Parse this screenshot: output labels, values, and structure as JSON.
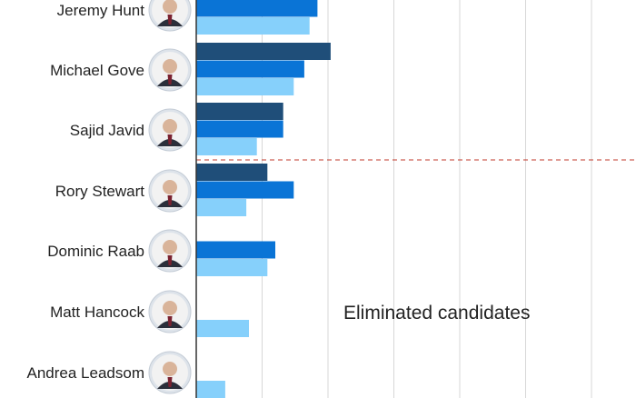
{
  "chart_data": {
    "type": "bar",
    "orientation": "horizontal",
    "categories": [
      "Jeremy Hunt",
      "Michael Gove",
      "Sajid Javid",
      "Rory Stewart",
      "Dominic Raab",
      "Matt Hancock",
      "Andrea Leadsom"
    ],
    "series": [
      {
        "color": "#1f4e79",
        "values": [
          null,
          51,
          33,
          27,
          null,
          null,
          null
        ]
      },
      {
        "color": "#0a74d6",
        "values": [
          46,
          41,
          33,
          37,
          30,
          null,
          null
        ]
      },
      {
        "color": "#86d0fb",
        "values": [
          43,
          37,
          23,
          19,
          27,
          20,
          11
        ]
      }
    ],
    "xlim": [
      0,
      160
    ],
    "grid": true,
    "annotation": "Eliminated candidates",
    "threshold": {
      "style": "dashed",
      "color": "#c0392b"
    }
  },
  "icons": [
    "avatar-photo"
  ]
}
